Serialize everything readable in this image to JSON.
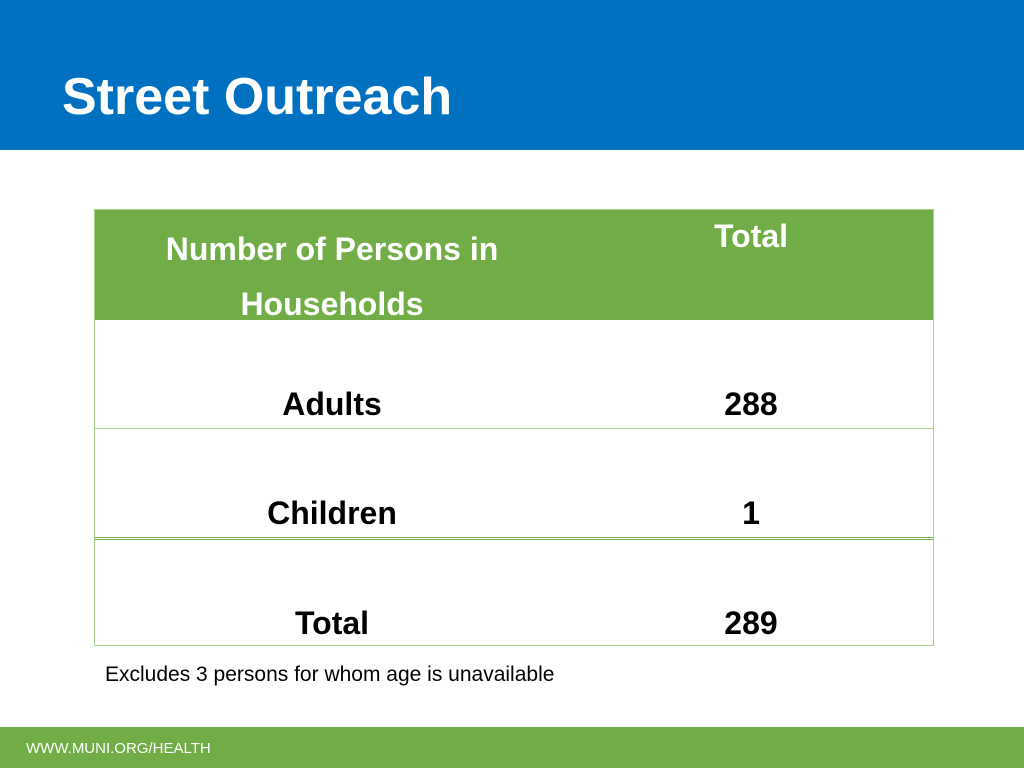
{
  "slide": {
    "title": "Street Outreach"
  },
  "table": {
    "columns": [
      "Number of Persons in Households",
      "Total"
    ],
    "rows": [
      {
        "label": "Adults",
        "value": "288"
      },
      {
        "label": "Children",
        "value": "1"
      },
      {
        "label": "Total",
        "value": "289"
      }
    ]
  },
  "footnote": "Excludes 3 persons for whom age is unavailable",
  "footer": {
    "url": "WWW.MUNI.ORG/HEALTH"
  },
  "colors": {
    "header_blue": "#0070c0",
    "table_green": "#70ad47",
    "border_light_green": "#a9d18e"
  }
}
